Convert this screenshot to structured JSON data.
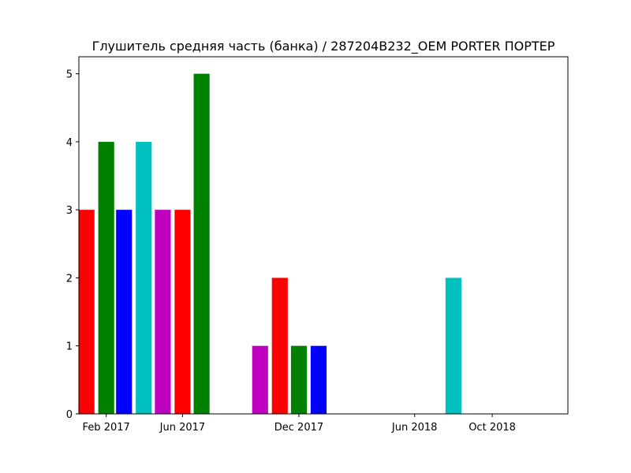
{
  "chart_data": {
    "type": "bar",
    "title": "Глушитель средняя часть (банка) / 287204B232_OEM PORTER ПОРТЕР",
    "xlabel": "",
    "ylabel": "",
    "ylim": [
      0,
      5.25
    ],
    "xlim": [
      "2016-12-20",
      "2019-01-28"
    ],
    "grid": false,
    "legend": "none",
    "bar_width_days": 25,
    "yticks": [
      0,
      1,
      2,
      3,
      4,
      5
    ],
    "xticks": [
      {
        "date": "2017-02-01",
        "label": "Feb 2017"
      },
      {
        "date": "2017-06-01",
        "label": "Jun 2017"
      },
      {
        "date": "2017-12-01",
        "label": "Dec 2017"
      },
      {
        "date": "2018-06-01",
        "label": "Jun 2018"
      },
      {
        "date": "2018-10-01",
        "label": "Oct 2018"
      }
    ],
    "bars": [
      {
        "date": "2017-01-01",
        "value": 3,
        "color": "#ff0000"
      },
      {
        "date": "2017-02-01",
        "value": 4,
        "color": "#008000"
      },
      {
        "date": "2017-03-01",
        "value": 3,
        "color": "#0000ff"
      },
      {
        "date": "2017-04-01",
        "value": 4,
        "color": "#00bfbf"
      },
      {
        "date": "2017-05-01",
        "value": 3,
        "color": "#bf00bf"
      },
      {
        "date": "2017-06-01",
        "value": 3,
        "color": "#ff0000"
      },
      {
        "date": "2017-07-01",
        "value": 5,
        "color": "#008000"
      },
      {
        "date": "2017-10-01",
        "value": 1,
        "color": "#bf00bf"
      },
      {
        "date": "2017-11-01",
        "value": 2,
        "color": "#ff0000"
      },
      {
        "date": "2017-12-01",
        "value": 1,
        "color": "#008000"
      },
      {
        "date": "2018-01-01",
        "value": 1,
        "color": "#0000ff"
      },
      {
        "date": "2018-08-01",
        "value": 2,
        "color": "#00bfbf"
      }
    ]
  }
}
